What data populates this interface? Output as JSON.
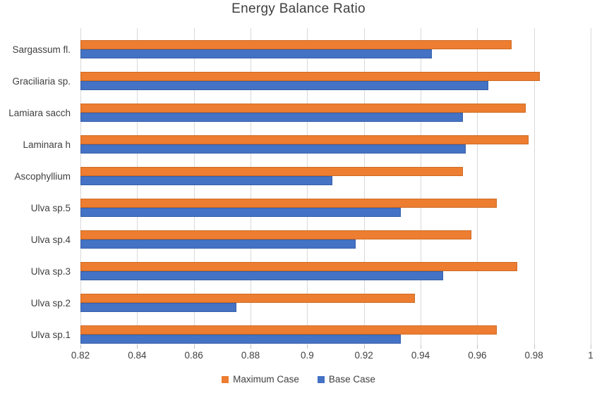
{
  "title": "Energy Balance Ratio",
  "colors": {
    "maximum_case": "#ed7d31",
    "maximum_case_border": "#ce6a22",
    "base_case": "#4472c4",
    "base_case_border": "#3760a8",
    "gridline": "#d9d9d9",
    "text": "#404040"
  },
  "chart_data": {
    "type": "bar",
    "orientation": "horizontal",
    "title": "Energy Balance Ratio",
    "xlabel": "",
    "ylabel": "",
    "xlim": [
      0.82,
      1.0
    ],
    "grid": true,
    "legend_position": "bottom",
    "categories": [
      "Sargassum fl.",
      "Graciliaria sp.",
      "Lamiara sacch",
      "Laminara h",
      "Ascophyllium",
      "Ulva sp.5",
      "Ulva sp.4",
      "Ulva sp.3",
      "Ulva sp.2",
      "Ulva sp.1"
    ],
    "series": [
      {
        "name": "Maximum Case",
        "color": "#ed7d31",
        "values": [
          0.972,
          0.982,
          0.977,
          0.978,
          0.955,
          0.967,
          0.958,
          0.974,
          0.938,
          0.967
        ]
      },
      {
        "name": "Base Case",
        "color": "#4472c4",
        "values": [
          0.944,
          0.964,
          0.955,
          0.956,
          0.909,
          0.933,
          0.917,
          0.948,
          0.875,
          0.933
        ]
      }
    ],
    "x_tick_labels": [
      "0.82",
      "0.84",
      "0.86",
      "0.88",
      "0.9",
      "0.92",
      "0.94",
      "0.96",
      "0.98",
      "1"
    ],
    "x_tick_values": [
      0.82,
      0.84,
      0.86,
      0.88,
      0.9,
      0.92,
      0.94,
      0.96,
      0.98,
      1.0
    ]
  }
}
